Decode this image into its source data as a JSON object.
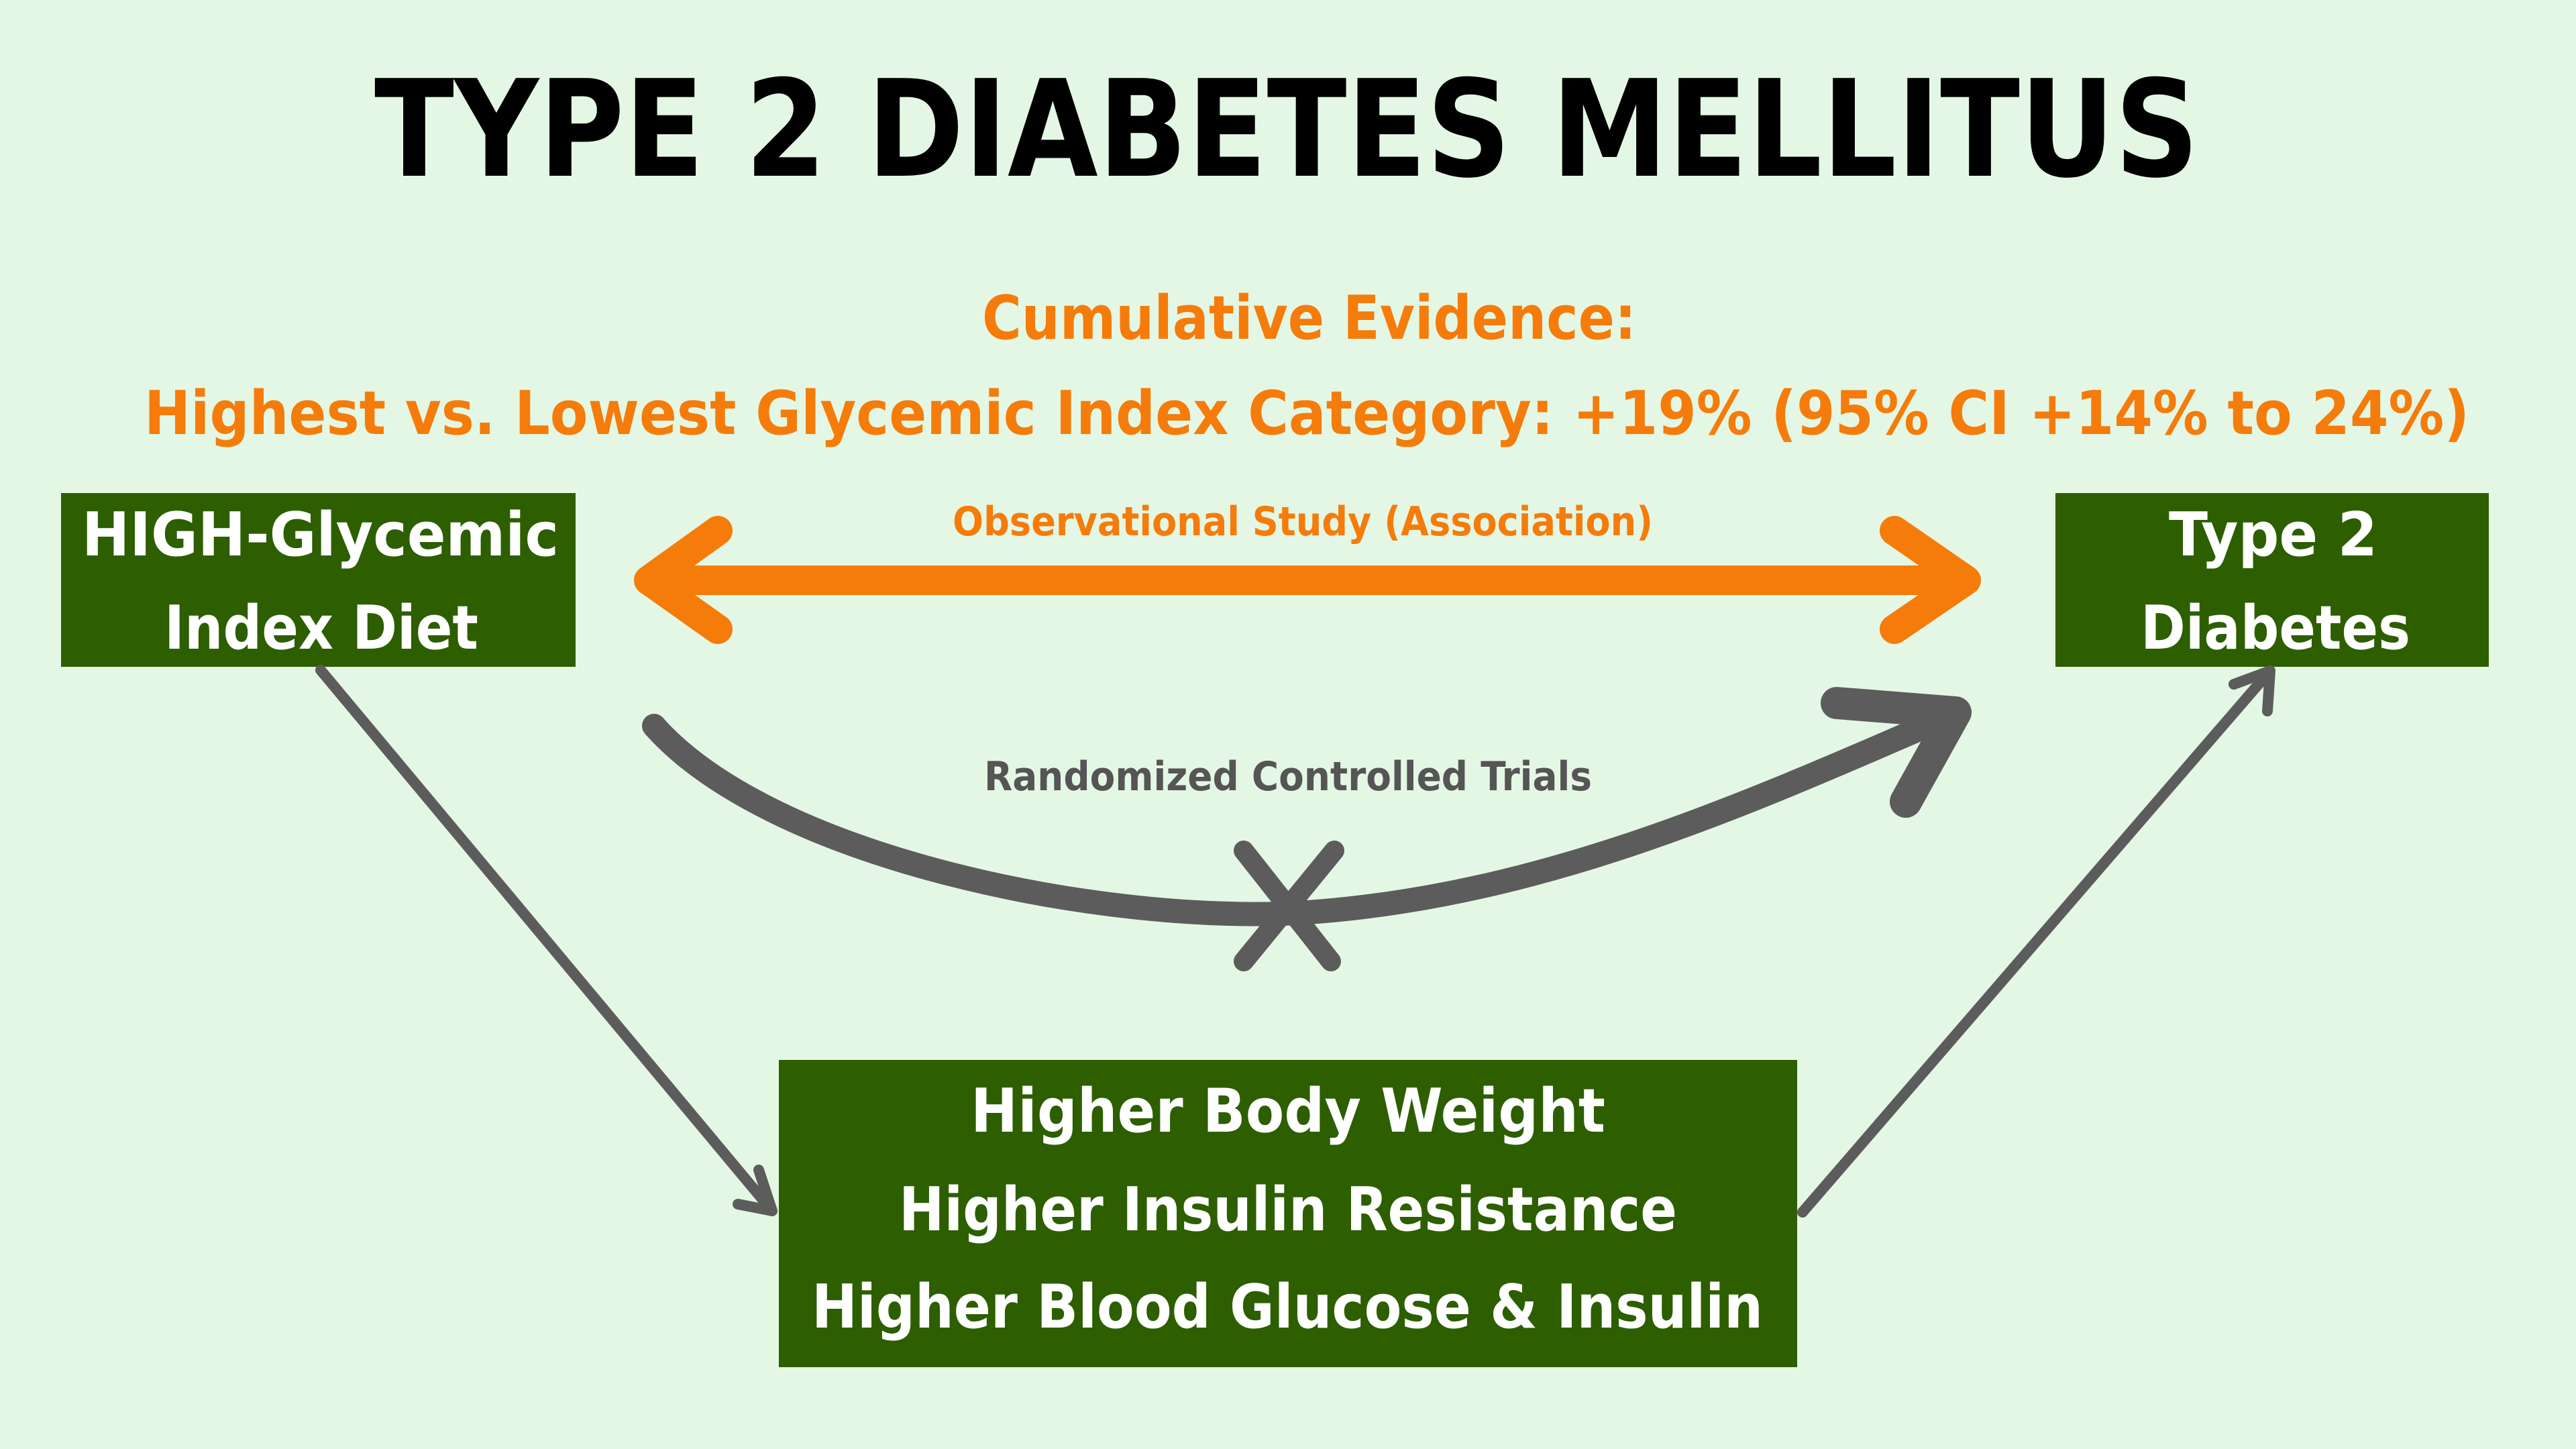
{
  "title": "TYPE 2 DIABETES MELLITUS",
  "evidence": {
    "heading": "Cumulative Evidence:",
    "detail": "Highest vs. Lowest Glycemic Index Category: +19% (95% CI +14% to 24%)"
  },
  "nodes": {
    "exposure": {
      "line1": "HIGH-Glycemic",
      "line2": "Index Diet"
    },
    "outcome": {
      "line1": "Type 2",
      "line2": "Diabetes"
    },
    "mediators": [
      "Higher Body Weight",
      "Higher Insulin Resistance",
      "Higher Blood Glucose & Insulin"
    ]
  },
  "edges": {
    "observational": "Observational Study (Association)",
    "rct": "Randomized Controlled Trials"
  },
  "colors": {
    "background": "#e4f7e4",
    "box": "#2d5e00",
    "orange": "#f57c0a",
    "gray": "#5c5c5c"
  }
}
